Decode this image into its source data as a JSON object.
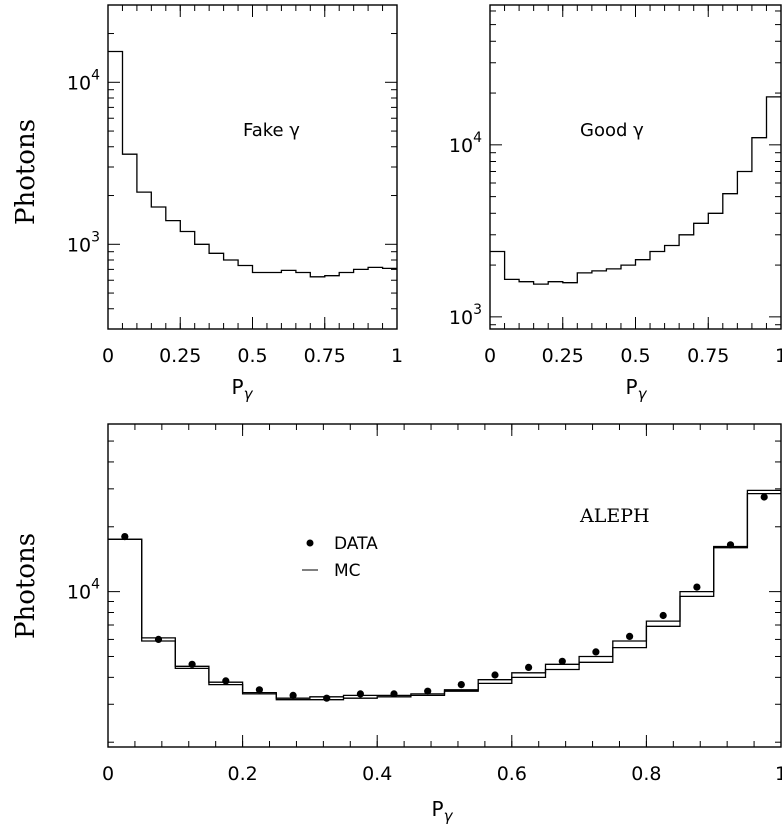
{
  "chart_data": [
    {
      "id": "fake",
      "type": "histogram",
      "annotation": "Fake γ",
      "ylabel": "Photons",
      "xlabel": "P",
      "xlabel_sub": "γ",
      "xlim": [
        0,
        1
      ],
      "ylim": [
        300,
        30000
      ],
      "ylog": true,
      "x_ticks": [
        "0",
        "0.25",
        "0.5",
        "0.75",
        "1"
      ],
      "x_tick_values": [
        0,
        0.25,
        0.5,
        0.75,
        1
      ],
      "y_ticks": [
        {
          "value": 1000,
          "base": "10",
          "exp": "3"
        },
        {
          "value": 10000,
          "base": "10",
          "exp": "4"
        }
      ],
      "bin_edges": [
        0,
        0.05,
        0.1,
        0.15,
        0.2,
        0.25,
        0.3,
        0.35,
        0.4,
        0.45,
        0.5,
        0.55,
        0.6,
        0.65,
        0.7,
        0.75,
        0.8,
        0.85,
        0.9,
        0.95,
        1
      ],
      "values": [
        15500,
        3600,
        2100,
        1700,
        1400,
        1200,
        1000,
        880,
        800,
        740,
        670,
        670,
        690,
        670,
        630,
        640,
        670,
        700,
        720,
        710
      ]
    },
    {
      "id": "good",
      "type": "histogram",
      "annotation": "Good γ",
      "xlabel": "P",
      "xlabel_sub": "γ",
      "xlim": [
        0,
        1
      ],
      "ylim": [
        850,
        65000
      ],
      "ylog": true,
      "x_ticks": [
        "0",
        "0.25",
        "0.5",
        "0.75",
        "1"
      ],
      "x_tick_values": [
        0,
        0.25,
        0.5,
        0.75,
        1
      ],
      "y_ticks": [
        {
          "value": 1000,
          "base": "10",
          "exp": "3"
        },
        {
          "value": 10000,
          "base": "10",
          "exp": "4"
        }
      ],
      "bin_edges": [
        0,
        0.05,
        0.1,
        0.15,
        0.2,
        0.25,
        0.3,
        0.35,
        0.4,
        0.45,
        0.5,
        0.55,
        0.6,
        0.65,
        0.7,
        0.75,
        0.8,
        0.85,
        0.9,
        0.95,
        1
      ],
      "values": [
        2400,
        1650,
        1600,
        1550,
        1600,
        1580,
        1800,
        1850,
        1900,
        2000,
        2150,
        2400,
        2600,
        3000,
        3500,
        4000,
        5200,
        7000,
        11000,
        19000
      ]
    },
    {
      "id": "combined",
      "type": "histogram",
      "annotation": "ALEPH",
      "ylabel": "Photons",
      "xlabel": "P",
      "xlabel_sub": "γ",
      "xlim": [
        0,
        1
      ],
      "ylim": [
        1900,
        60000
      ],
      "ylog": true,
      "x_ticks": [
        "0",
        "0.2",
        "0.4",
        "0.6",
        "0.8",
        "1"
      ],
      "x_tick_values": [
        0,
        0.2,
        0.4,
        0.6,
        0.8,
        1
      ],
      "y_ticks": [
        {
          "value": 10000,
          "base": "10",
          "exp": "4"
        }
      ],
      "legend": [
        {
          "marker": "dot",
          "label": "DATA"
        },
        {
          "marker": "line",
          "label": "MC"
        }
      ],
      "bin_edges": [
        0,
        0.05,
        0.1,
        0.15,
        0.2,
        0.25,
        0.3,
        0.35,
        0.4,
        0.45,
        0.5,
        0.55,
        0.6,
        0.65,
        0.7,
        0.75,
        0.8,
        0.85,
        0.9,
        0.95,
        1
      ],
      "series": [
        {
          "name": "DATA",
          "style": "points",
          "x": [
            0.025,
            0.075,
            0.125,
            0.175,
            0.225,
            0.275,
            0.325,
            0.375,
            0.425,
            0.475,
            0.525,
            0.575,
            0.625,
            0.675,
            0.725,
            0.775,
            0.825,
            0.875,
            0.925,
            0.975
          ],
          "values": [
            18000,
            6000,
            4600,
            3850,
            3500,
            3300,
            3200,
            3350,
            3350,
            3450,
            3700,
            4100,
            4450,
            4750,
            5250,
            6200,
            7750,
            10500,
            16500,
            27500
          ]
        },
        {
          "name": "MC",
          "style": "step",
          "values": [
            17500,
            6100,
            4500,
            3800,
            3400,
            3200,
            3250,
            3300,
            3300,
            3350,
            3500,
            3900,
            4200,
            4600,
            5000,
            5900,
            7300,
            10000,
            16200,
            28500
          ]
        },
        {
          "name": "MC",
          "style": "step",
          "values": [
            17500,
            5900,
            4400,
            3700,
            3350,
            3150,
            3150,
            3200,
            3250,
            3300,
            3450,
            3750,
            4000,
            4350,
            4700,
            5500,
            6900,
            9500,
            16000,
            29500
          ]
        }
      ]
    }
  ]
}
